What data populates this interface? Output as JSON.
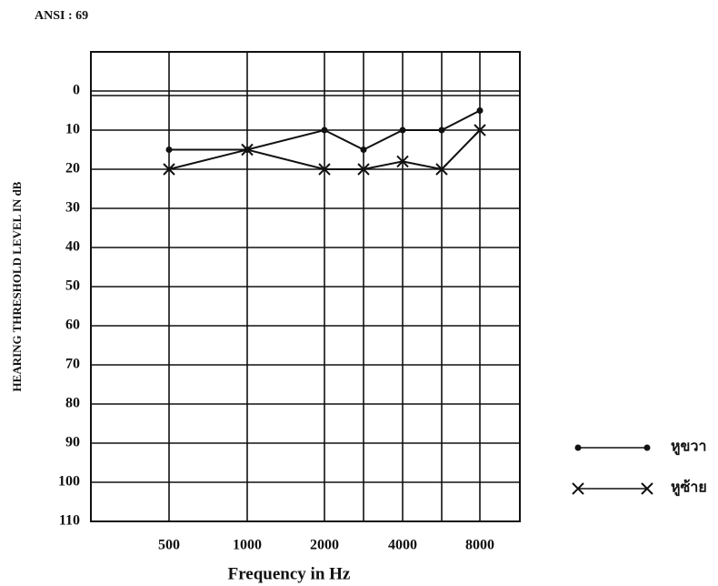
{
  "chart_data": {
    "type": "line",
    "title": "ANSI : 69",
    "y_label": "HEARING THRESHOLD LEVEL IN dB",
    "x_label": "Frequency  in  Hz",
    "categories": [
      "500",
      "1000",
      "2000",
      null,
      "4000",
      null,
      "8000"
    ],
    "series": [
      {
        "name": "หูขวา",
        "color": "#111111",
        "marker": "dot",
        "values": [
          15,
          15,
          10,
          15,
          10,
          10,
          5
        ]
      },
      {
        "name": "หูซ้าย",
        "color": "#111111",
        "marker": "x",
        "values": [
          20,
          15,
          20,
          20,
          18,
          20,
          10
        ]
      }
    ],
    "ylim": [
      -10,
      110
    ],
    "yticks": [
      0,
      10,
      20,
      30,
      40,
      50,
      60,
      70,
      80,
      90,
      100,
      110
    ],
    "y_inverted": true,
    "grid": true
  }
}
